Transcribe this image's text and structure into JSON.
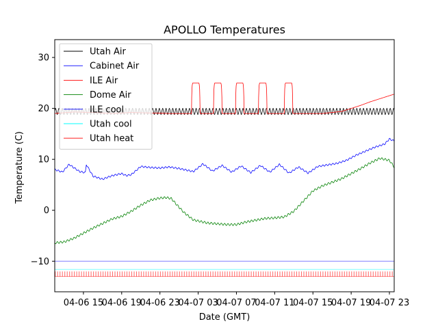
{
  "chart_data": {
    "type": "line",
    "title": "APOLLO Temperatures",
    "xlabel": "Date (GMT)",
    "ylabel": "Temperature (C)",
    "x_unit": "hours since 04-06 12:00 GMT",
    "xlim": [
      0,
      35.5
    ],
    "ylim": [
      -16,
      33.5
    ],
    "yticks": [
      -10,
      0,
      10,
      20,
      30
    ],
    "yticklabels": [
      "−10",
      "0",
      "10",
      "20",
      "30"
    ],
    "xticks": [
      3,
      7,
      11,
      15,
      19,
      23,
      27,
      31,
      35
    ],
    "xticklabels": [
      "04-06 15",
      "04-06 19",
      "04-06 23",
      "04-07 03",
      "04-07 07",
      "04-07 11",
      "04-07 15",
      "04-07 19",
      "04-07 23"
    ],
    "grid": false,
    "legend_position": "top-left",
    "series": [
      {
        "name": "Utah Air",
        "color": "#000000",
        "x": [
          0,
          2,
          4,
          6,
          8,
          10,
          12,
          14,
          16,
          18,
          20,
          22,
          24,
          26,
          28,
          30,
          32,
          34,
          35.5
        ],
        "y": [
          19.4,
          19.4,
          19.4,
          19.4,
          19.4,
          19.4,
          19.4,
          19.4,
          19.4,
          19.4,
          19.4,
          19.4,
          19.4,
          19.4,
          19.4,
          19.4,
          19.4,
          19.4,
          19.4
        ],
        "oscillation": 0.6
      },
      {
        "name": "Cabinet Air",
        "color": "#0000ff",
        "x": [
          0,
          0.8,
          1.5,
          2.6,
          3.2,
          3.3,
          4.0,
          5.0,
          6.0,
          7.0,
          7.5,
          8.0,
          9.0,
          10.0,
          11.0,
          12.0,
          13.0,
          14.5,
          15.5,
          16.5,
          17.5,
          18.5,
          19.5,
          20.5,
          21.5,
          22.5,
          23.5,
          24.5,
          25.5,
          26.5,
          27.5,
          28.5,
          29.5,
          30.5,
          31.5,
          32.5,
          33.5,
          34.5,
          35.0,
          35.5
        ],
        "y": [
          8.0,
          7.5,
          9.0,
          7.6,
          7.4,
          9.0,
          6.7,
          6.1,
          6.8,
          7.2,
          6.8,
          7.0,
          8.6,
          8.4,
          8.3,
          8.5,
          8.2,
          7.6,
          9.1,
          7.7,
          8.8,
          7.5,
          8.7,
          7.4,
          8.8,
          7.5,
          9.0,
          7.3,
          8.5,
          7.3,
          8.6,
          8.9,
          9.2,
          9.8,
          10.8,
          11.6,
          12.4,
          13.0,
          14.0,
          13.6
        ],
        "oscillation": 0.15
      },
      {
        "name": "ILE Air",
        "color": "#ff0000",
        "x": [
          0,
          2,
          4,
          6,
          8,
          10,
          12,
          14,
          16,
          18,
          20,
          22,
          24,
          26,
          28,
          30,
          31,
          32,
          33,
          34,
          35,
          35.5
        ],
        "y": [
          19.0,
          19.3,
          19.2,
          19.0,
          19.2,
          19.1,
          19.0,
          19.0,
          19.0,
          19.0,
          19.0,
          19.0,
          19.0,
          19.0,
          19.0,
          19.4,
          20.0,
          20.6,
          21.3,
          21.9,
          22.5,
          22.8
        ],
        "spikes": [
          {
            "start": 14.3,
            "end": 15.2,
            "peak": 25.0
          },
          {
            "start": 16.6,
            "end": 17.5,
            "peak": 25.0
          },
          {
            "start": 18.9,
            "end": 19.8,
            "peak": 25.0
          },
          {
            "start": 21.3,
            "end": 22.2,
            "peak": 25.0
          },
          {
            "start": 24.0,
            "end": 24.9,
            "peak": 25.0
          }
        ]
      },
      {
        "name": "Dome Air",
        "color": "#008000",
        "x": [
          0,
          1,
          2,
          3,
          4,
          5,
          6,
          7,
          8,
          9,
          10,
          11,
          11.7,
          12.2,
          12.8,
          13.5,
          14.5,
          16,
          18,
          19,
          20,
          22,
          23,
          24,
          25,
          26,
          27,
          28,
          29,
          30,
          31,
          32,
          33,
          34,
          35,
          35.5
        ],
        "y": [
          -6.4,
          -6.2,
          -5.5,
          -4.5,
          -3.5,
          -2.6,
          -1.7,
          -1.2,
          -0.2,
          1.0,
          2.0,
          2.4,
          2.5,
          2.3,
          1.0,
          -0.4,
          -1.9,
          -2.5,
          -2.8,
          -2.8,
          -2.3,
          -1.6,
          -1.5,
          -1.3,
          -0.2,
          1.8,
          3.8,
          4.8,
          5.5,
          6.2,
          7.2,
          8.2,
          9.3,
          10.2,
          9.8,
          8.5
        ],
        "oscillation": 0.2
      },
      {
        "name": "ILE cool",
        "color": "#0000ff",
        "x": [
          0,
          35.5
        ],
        "y": [
          -10,
          -10
        ],
        "alpha": 0.5
      },
      {
        "name": "Utah cool",
        "color": "#00ffff",
        "x": [
          0,
          35.5
        ],
        "y": [
          -11.6,
          -11.6
        ],
        "alpha": 0.5
      },
      {
        "name": "Utah heat",
        "color": "#ff0000",
        "x": [
          0,
          35.5
        ],
        "y": [
          -13,
          -13
        ],
        "pulse_height": -12.0,
        "alpha": 0.6
      }
    ]
  }
}
